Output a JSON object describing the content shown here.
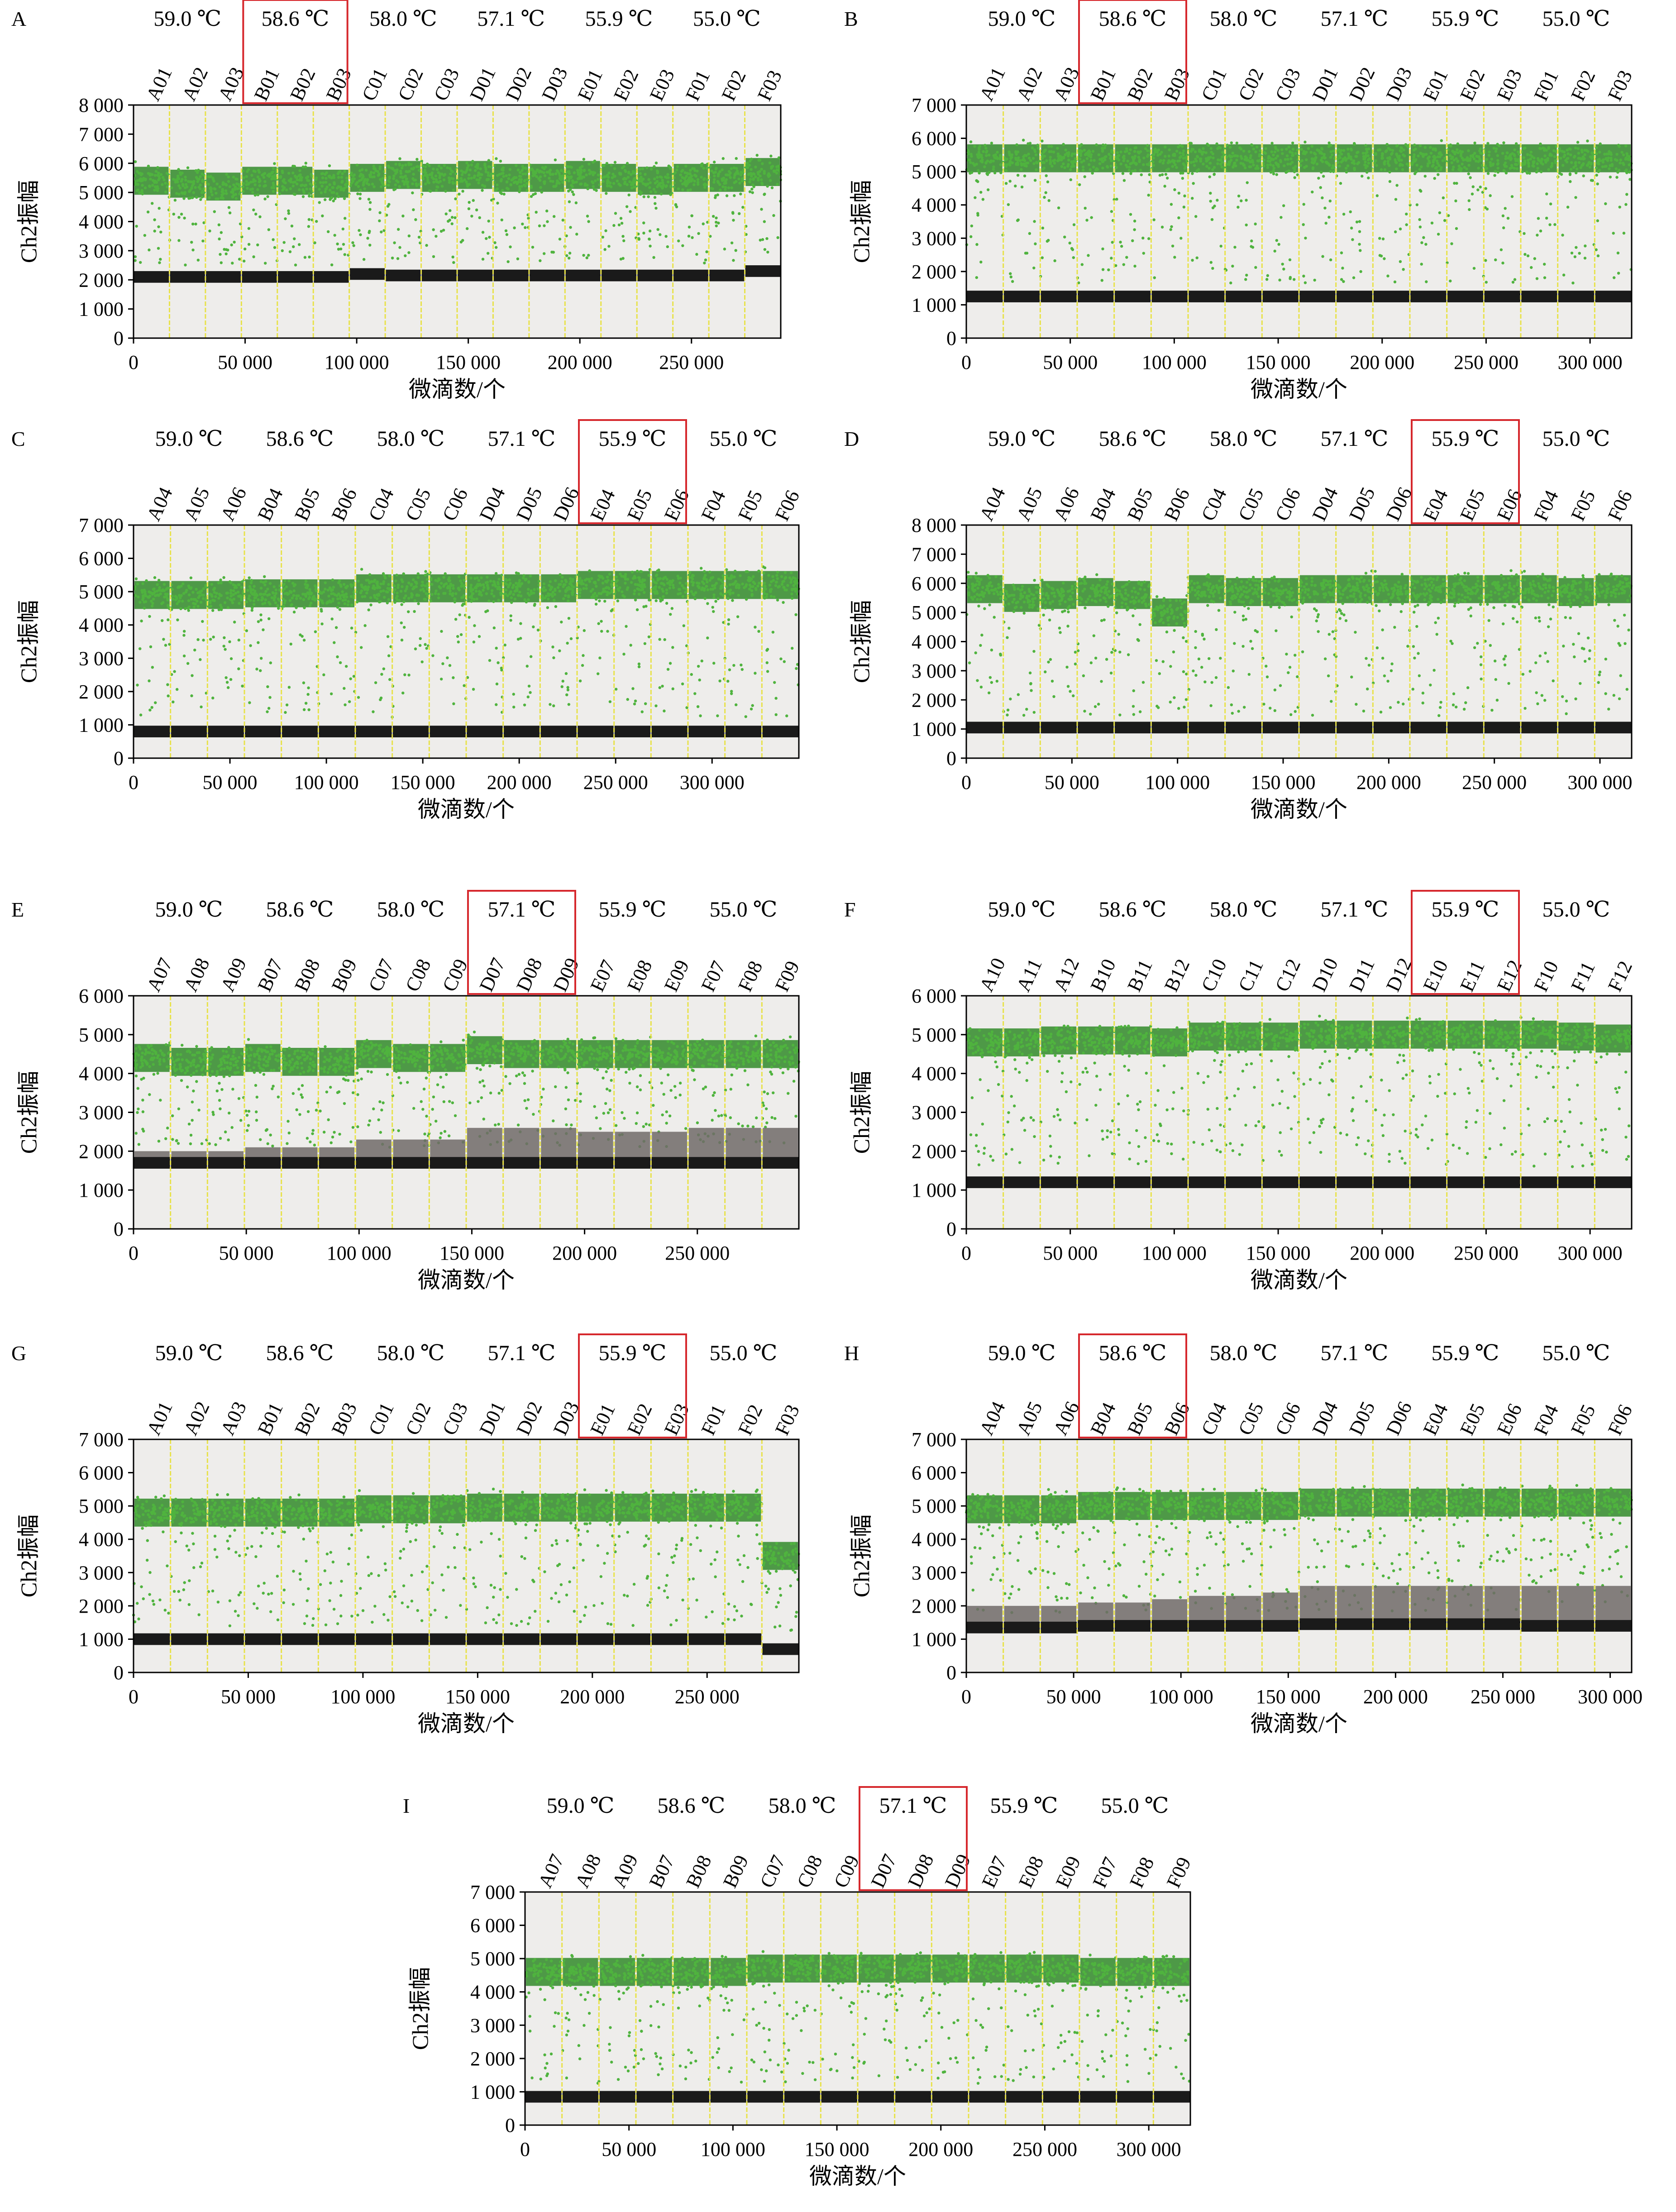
{
  "figure": {
    "background_plot": "#eeedeb",
    "colors": {
      "positive": "#4fb33e",
      "positive_dense": "#3c8f35",
      "negative": "#1a1a1a",
      "rain_gray": "#706a68",
      "divider": "#e8e24a",
      "highlight_box": "#d6282d"
    },
    "y_axis_title": "Ch2振幅",
    "x_axis_title": "微滴数/个"
  },
  "chart_data": [
    {
      "panel": "A",
      "type": "scatter",
      "temperatures": [
        "59.0 ℃",
        "58.6 ℃",
        "58.0 ℃",
        "57.1 ℃",
        "55.9 ℃",
        "55.0 ℃"
      ],
      "highlight_group": 1,
      "wells": [
        "A01",
        "A02",
        "A03",
        "B01",
        "B02",
        "B03",
        "C01",
        "C02",
        "C03",
        "D01",
        "D02",
        "D03",
        "E01",
        "E02",
        "E03",
        "F01",
        "F02",
        "F03"
      ],
      "ylim": [
        0,
        8000
      ],
      "yticks": [
        0,
        1000,
        2000,
        3000,
        4000,
        5000,
        6000,
        7000,
        8000
      ],
      "xlim": [
        0,
        290000
      ],
      "xticks": [
        0,
        50000,
        100000,
        150000,
        200000,
        250000
      ],
      "ytick_labels": [
        "0",
        "1 000",
        "2 000",
        "3 000",
        "4 000",
        "5 000",
        "6 000",
        "7 000",
        "8 000"
      ],
      "xtick_labels": [
        "0",
        "50 000",
        "100 000",
        "150 000",
        "200 000",
        "250 000"
      ],
      "positive_amplitude": [
        5400,
        5300,
        5200,
        5400,
        5400,
        5300,
        5500,
        5600,
        5500,
        5600,
        5500,
        5500,
        5600,
        5500,
        5400,
        5500,
        5500,
        5700
      ],
      "negative_amplitude": [
        2100,
        2100,
        2100,
        2100,
        2100,
        2100,
        2200,
        2150,
        2150,
        2150,
        2150,
        2150,
        2150,
        2150,
        2150,
        2150,
        2150,
        2300
      ]
    },
    {
      "panel": "B",
      "type": "scatter",
      "temperatures": [
        "59.0 ℃",
        "58.6 ℃",
        "58.0 ℃",
        "57.1 ℃",
        "55.9 ℃",
        "55.0 ℃"
      ],
      "highlight_group": 1,
      "wells": [
        "A01",
        "A02",
        "A03",
        "B01",
        "B02",
        "B03",
        "C01",
        "C02",
        "C03",
        "D01",
        "D02",
        "D03",
        "E01",
        "E02",
        "E03",
        "F01",
        "F02",
        "F03"
      ],
      "ylim": [
        0,
        7000
      ],
      "yticks": [
        0,
        1000,
        2000,
        3000,
        4000,
        5000,
        6000,
        7000
      ],
      "xlim": [
        0,
        320000
      ],
      "xticks": [
        0,
        50000,
        100000,
        150000,
        200000,
        250000,
        300000
      ],
      "ytick_labels": [
        "0",
        "1 000",
        "2 000",
        "3 000",
        "4 000",
        "5 000",
        "6 000",
        "7 000"
      ],
      "xtick_labels": [
        "0",
        "50 000",
        "100 000",
        "150 000",
        "200 000",
        "250 000",
        "300 000"
      ],
      "positive_amplitude": [
        5400,
        5400,
        5400,
        5400,
        5400,
        5400,
        5400,
        5400,
        5400,
        5400,
        5400,
        5400,
        5400,
        5400,
        5400,
        5400,
        5400,
        5400
      ],
      "negative_amplitude": [
        1250,
        1250,
        1250,
        1250,
        1250,
        1250,
        1250,
        1250,
        1250,
        1250,
        1250,
        1250,
        1250,
        1250,
        1250,
        1250,
        1250,
        1250
      ]
    },
    {
      "panel": "C",
      "type": "scatter",
      "temperatures": [
        "59.0 ℃",
        "58.6 ℃",
        "58.0 ℃",
        "57.1 ℃",
        "55.9 ℃",
        "55.0 ℃"
      ],
      "highlight_group": 4,
      "wells": [
        "A04",
        "A05",
        "A06",
        "B04",
        "B05",
        "B06",
        "C04",
        "C05",
        "C06",
        "D04",
        "D05",
        "D06",
        "E04",
        "E05",
        "E06",
        "F04",
        "F05",
        "F06"
      ],
      "ylim": [
        0,
        7000
      ],
      "yticks": [
        0,
        1000,
        2000,
        3000,
        4000,
        5000,
        6000,
        7000
      ],
      "xlim": [
        0,
        345000
      ],
      "xticks": [
        0,
        50000,
        100000,
        150000,
        200000,
        250000,
        300000
      ],
      "ytick_labels": [
        "0",
        "1 000",
        "2 000",
        "3 000",
        "4 000",
        "5 000",
        "6 000",
        "7 000"
      ],
      "xtick_labels": [
        "0",
        "50 000",
        "100 000",
        "150 000",
        "200 000",
        "250 000",
        "300 000"
      ],
      "positive_amplitude": [
        4900,
        4900,
        4900,
        4950,
        4950,
        4950,
        5100,
        5100,
        5100,
        5100,
        5100,
        5100,
        5200,
        5200,
        5200,
        5200,
        5200,
        5200
      ],
      "negative_amplitude": [
        800,
        800,
        800,
        800,
        800,
        800,
        800,
        800,
        800,
        800,
        800,
        800,
        800,
        800,
        800,
        800,
        800,
        800
      ]
    },
    {
      "panel": "D",
      "type": "scatter",
      "temperatures": [
        "59.0 ℃",
        "58.6 ℃",
        "58.0 ℃",
        "57.1 ℃",
        "55.9 ℃",
        "55.0 ℃"
      ],
      "highlight_group": 4,
      "wells": [
        "A04",
        "A05",
        "A06",
        "B04",
        "B05",
        "B06",
        "C04",
        "C05",
        "C06",
        "D04",
        "D05",
        "D06",
        "E04",
        "E05",
        "E06",
        "F04",
        "F05",
        "F06"
      ],
      "ylim": [
        0,
        8000
      ],
      "yticks": [
        0,
        1000,
        2000,
        3000,
        4000,
        5000,
        6000,
        7000,
        8000
      ],
      "xlim": [
        0,
        315000
      ],
      "xticks": [
        0,
        50000,
        100000,
        150000,
        200000,
        250000,
        300000
      ],
      "ytick_labels": [
        "0",
        "1 000",
        "2 000",
        "3 000",
        "4 000",
        "5 000",
        "6 000",
        "7 000",
        "8 000"
      ],
      "xtick_labels": [
        "0",
        "50 000",
        "100 000",
        "150 000",
        "200 000",
        "250 000",
        "300 000"
      ],
      "positive_amplitude": [
        5800,
        5500,
        5600,
        5700,
        5600,
        5000,
        5800,
        5700,
        5700,
        5800,
        5800,
        5800,
        5800,
        5800,
        5800,
        5800,
        5700,
        5800
      ],
      "negative_amplitude": [
        1050,
        1050,
        1050,
        1050,
        1050,
        1050,
        1050,
        1050,
        1050,
        1050,
        1050,
        1050,
        1050,
        1050,
        1050,
        1050,
        1050,
        1050
      ]
    },
    {
      "panel": "E",
      "type": "scatter",
      "temperatures": [
        "59.0 ℃",
        "58.6 ℃",
        "58.0 ℃",
        "57.1 ℃",
        "55.9 ℃",
        "55.0 ℃"
      ],
      "highlight_group": 3,
      "wells": [
        "A07",
        "A08",
        "A09",
        "B07",
        "B08",
        "B09",
        "C07",
        "C08",
        "C09",
        "D07",
        "D08",
        "D09",
        "E07",
        "E08",
        "E09",
        "F07",
        "F08",
        "F09"
      ],
      "ylim": [
        0,
        6000
      ],
      "yticks": [
        0,
        1000,
        2000,
        3000,
        4000,
        5000,
        6000
      ],
      "xlim": [
        0,
        295000
      ],
      "xticks": [
        0,
        50000,
        100000,
        150000,
        200000,
        250000
      ],
      "ytick_labels": [
        "0",
        "1 000",
        "2 000",
        "3 000",
        "4 000",
        "5 000",
        "6 000"
      ],
      "xtick_labels": [
        "0",
        "50 000",
        "100 000",
        "150 000",
        "200 000",
        "250 000"
      ],
      "positive_amplitude": [
        4400,
        4300,
        4300,
        4400,
        4300,
        4300,
        4500,
        4400,
        4400,
        4600,
        4500,
        4500,
        4500,
        4500,
        4500,
        4500,
        4500,
        4500
      ],
      "negative_amplitude": [
        1700,
        1700,
        1700,
        1700,
        1700,
        1700,
        1700,
        1700,
        1700,
        1700,
        1700,
        1700,
        1700,
        1700,
        1700,
        1700,
        1700,
        1700
      ],
      "rain_band": [
        2000,
        2000,
        2000,
        2100,
        2100,
        2100,
        2300,
        2300,
        2300,
        2600,
        2600,
        2600,
        2500,
        2500,
        2500,
        2600,
        2600,
        2600
      ]
    },
    {
      "panel": "F",
      "type": "scatter",
      "temperatures": [
        "59.0 ℃",
        "58.6 ℃",
        "58.0 ℃",
        "57.1 ℃",
        "55.9 ℃",
        "55.0 ℃"
      ],
      "highlight_group": 4,
      "wells": [
        "A10",
        "A11",
        "A12",
        "B10",
        "B11",
        "B12",
        "C10",
        "C11",
        "C12",
        "D10",
        "D11",
        "D12",
        "E10",
        "E11",
        "E12",
        "F10",
        "F11",
        "F12"
      ],
      "ylim": [
        0,
        6000
      ],
      "yticks": [
        0,
        1000,
        2000,
        3000,
        4000,
        5000,
        6000
      ],
      "xlim": [
        0,
        320000
      ],
      "xticks": [
        0,
        50000,
        100000,
        150000,
        200000,
        250000,
        300000
      ],
      "ytick_labels": [
        "0",
        "1 000",
        "2 000",
        "3 000",
        "4 000",
        "5 000",
        "6 000"
      ],
      "xtick_labels": [
        "0",
        "50 000",
        "100 000",
        "150 000",
        "200 000",
        "250 000",
        "300 000"
      ],
      "positive_amplitude": [
        4800,
        4800,
        4850,
        4850,
        4850,
        4800,
        4950,
        4950,
        4950,
        5000,
        5000,
        5000,
        5000,
        5000,
        5000,
        5000,
        4950,
        4900
      ],
      "negative_amplitude": [
        1200,
        1200,
        1200,
        1200,
        1200,
        1200,
        1200,
        1200,
        1200,
        1200,
        1200,
        1200,
        1200,
        1200,
        1200,
        1200,
        1200,
        1200
      ]
    },
    {
      "panel": "G",
      "type": "scatter",
      "temperatures": [
        "59.0 ℃",
        "58.6 ℃",
        "58.0 ℃",
        "57.1 ℃",
        "55.9 ℃",
        "55.0 ℃"
      ],
      "highlight_group": 4,
      "wells": [
        "A01",
        "A02",
        "A03",
        "B01",
        "B02",
        "B03",
        "C01",
        "C02",
        "C03",
        "D01",
        "D02",
        "D03",
        "E01",
        "E02",
        "E03",
        "F01",
        "F02",
        "F03"
      ],
      "ylim": [
        0,
        7000
      ],
      "yticks": [
        0,
        1000,
        2000,
        3000,
        4000,
        5000,
        6000,
        7000
      ],
      "xlim": [
        0,
        290000
      ],
      "xticks": [
        0,
        50000,
        100000,
        150000,
        200000,
        250000
      ],
      "ytick_labels": [
        "0",
        "1 000",
        "2 000",
        "3 000",
        "4 000",
        "5 000",
        "6 000",
        "7 000"
      ],
      "xtick_labels": [
        "0",
        "50 000",
        "100 000",
        "150 000",
        "200 000",
        "250 000"
      ],
      "positive_amplitude": [
        4800,
        4800,
        4800,
        4800,
        4800,
        4800,
        4900,
        4900,
        4900,
        4950,
        4950,
        4950,
        4950,
        4950,
        4950,
        4950,
        4950,
        3500
      ],
      "negative_amplitude": [
        1000,
        1000,
        1000,
        1000,
        1000,
        1000,
        1000,
        1000,
        1000,
        1000,
        1000,
        1000,
        1000,
        1000,
        1000,
        1000,
        1000,
        700
      ]
    },
    {
      "panel": "H",
      "type": "scatter",
      "temperatures": [
        "59.0 ℃",
        "58.6 ℃",
        "58.0 ℃",
        "57.1 ℃",
        "55.9 ℃",
        "55.0 ℃"
      ],
      "highlight_group": 1,
      "wells": [
        "A04",
        "A05",
        "A06",
        "B04",
        "B05",
        "B06",
        "C04",
        "C05",
        "C06",
        "D04",
        "D05",
        "D06",
        "E04",
        "E05",
        "E06",
        "F04",
        "F05",
        "F06"
      ],
      "ylim": [
        0,
        7000
      ],
      "yticks": [
        0,
        1000,
        2000,
        3000,
        4000,
        5000,
        6000,
        7000
      ],
      "xlim": [
        0,
        310000
      ],
      "xticks": [
        0,
        50000,
        100000,
        150000,
        200000,
        250000,
        300000
      ],
      "ytick_labels": [
        "0",
        "1 000",
        "2 000",
        "3 000",
        "4 000",
        "5 000",
        "6 000",
        "7 000"
      ],
      "xtick_labels": [
        "0",
        "50 000",
        "100 000",
        "150 000",
        "200 000",
        "250 000",
        "300 000"
      ],
      "positive_amplitude": [
        4900,
        4900,
        4900,
        5000,
        5000,
        5000,
        5000,
        5000,
        5000,
        5100,
        5100,
        5100,
        5100,
        5100,
        5100,
        5100,
        5100,
        5100
      ],
      "negative_amplitude": [
        1350,
        1350,
        1350,
        1400,
        1400,
        1400,
        1400,
        1400,
        1400,
        1450,
        1450,
        1450,
        1450,
        1450,
        1450,
        1400,
        1400,
        1400
      ],
      "rain_band": [
        2000,
        2000,
        2000,
        2100,
        2100,
        2200,
        2300,
        2300,
        2400,
        2600,
        2600,
        2600,
        2600,
        2600,
        2600,
        2600,
        2600,
        2600
      ]
    },
    {
      "panel": "I",
      "type": "scatter",
      "temperatures": [
        "59.0 ℃",
        "58.6 ℃",
        "58.0 ℃",
        "57.1 ℃",
        "55.9 ℃",
        "55.0 ℃"
      ],
      "highlight_group": 3,
      "wells": [
        "A07",
        "A08",
        "A09",
        "B07",
        "B08",
        "B09",
        "C07",
        "C08",
        "C09",
        "D07",
        "D08",
        "D09",
        "E07",
        "E08",
        "E09",
        "F07",
        "F08",
        "F09"
      ],
      "ylim": [
        0,
        7000
      ],
      "yticks": [
        0,
        1000,
        2000,
        3000,
        4000,
        5000,
        6000,
        7000
      ],
      "xlim": [
        0,
        320000
      ],
      "xticks": [
        0,
        50000,
        100000,
        150000,
        200000,
        250000,
        300000
      ],
      "ytick_labels": [
        "0",
        "1 000",
        "2 000",
        "3 000",
        "4 000",
        "5 000",
        "6 000",
        "7 000"
      ],
      "xtick_labels": [
        "0",
        "50 000",
        "100 000",
        "150 000",
        "200 000",
        "250 000",
        "300 000"
      ],
      "positive_amplitude": [
        4600,
        4600,
        4600,
        4600,
        4600,
        4600,
        4700,
        4700,
        4700,
        4700,
        4700,
        4700,
        4700,
        4700,
        4700,
        4600,
        4600,
        4600
      ],
      "negative_amplitude": [
        850,
        850,
        850,
        850,
        850,
        850,
        850,
        850,
        850,
        850,
        850,
        850,
        850,
        850,
        850,
        850,
        850,
        850
      ]
    }
  ]
}
